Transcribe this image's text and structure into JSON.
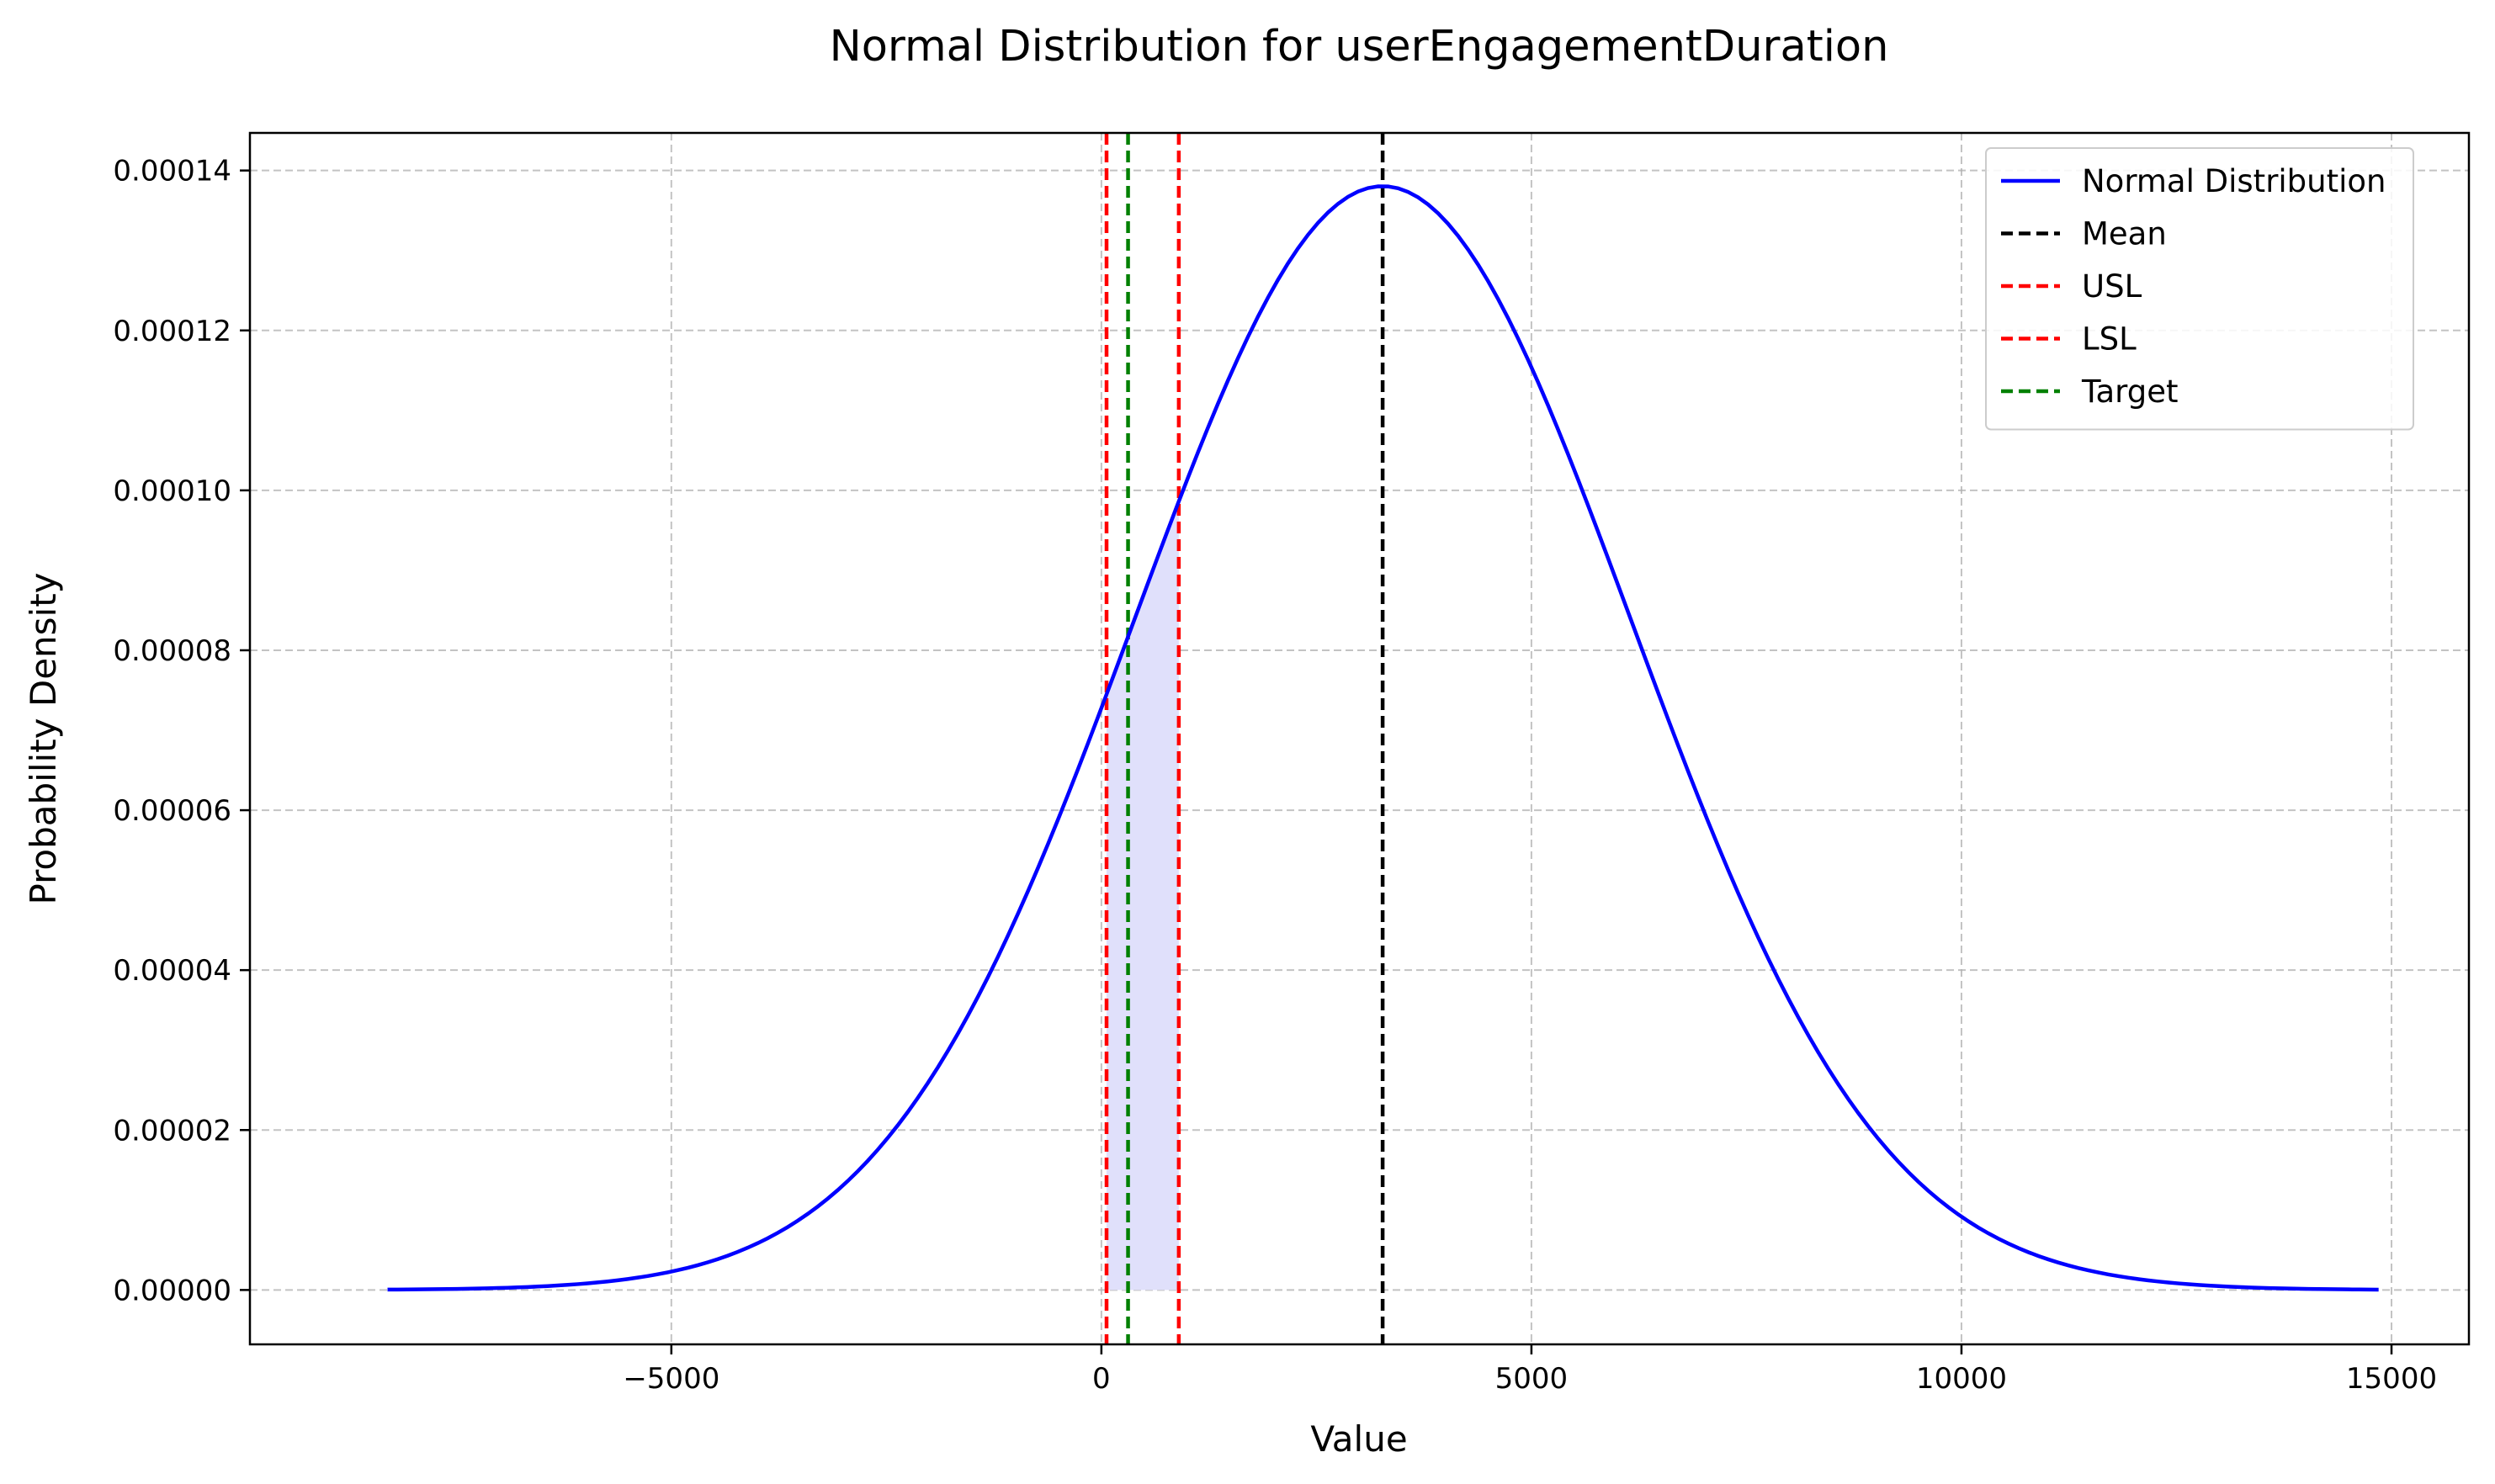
{
  "chart_data": {
    "type": "line",
    "title": "Normal Distribution for userEngagementDuration",
    "xlabel": "Value",
    "ylabel": "Probability Density",
    "xlim": [
      -9900,
      15900
    ],
    "ylim": [
      -6.8e-06,
      0.0001447
    ],
    "xticks": [
      -5000,
      0,
      5000,
      10000,
      15000
    ],
    "xtick_labels": [
      "−5000",
      "0",
      "5000",
      "10000",
      "15000"
    ],
    "yticks": [
      0,
      2e-05,
      4e-05,
      6e-05,
      8e-05,
      0.0001,
      0.00012,
      0.00014
    ],
    "ytick_labels": [
      "0.00000",
      "0.00002",
      "0.00004",
      "0.00006",
      "0.00008",
      "0.00010",
      "0.00012",
      "0.00014"
    ],
    "grid": true,
    "legend_position": "top-right",
    "series": [
      {
        "name": "Normal Distribution",
        "kind": "curve",
        "color": "#0000ff",
        "mean": 3270,
        "std": 2890,
        "x_range": [
          -8300,
          14850
        ],
        "points": 200
      }
    ],
    "vlines": [
      {
        "name": "Mean",
        "x": 3270,
        "color": "#000000",
        "style": "dashed"
      },
      {
        "name": "USL",
        "x": 60,
        "color": "#ff0000",
        "style": "dashed"
      },
      {
        "name": "LSL",
        "x": 900,
        "color": "#ff0000",
        "style": "dashed"
      },
      {
        "name": "Target",
        "x": 310,
        "color": "#008000",
        "style": "dashed"
      }
    ],
    "shaded_region": {
      "x_from": 60,
      "x_to": 900,
      "color": "#e0e0fb"
    }
  }
}
